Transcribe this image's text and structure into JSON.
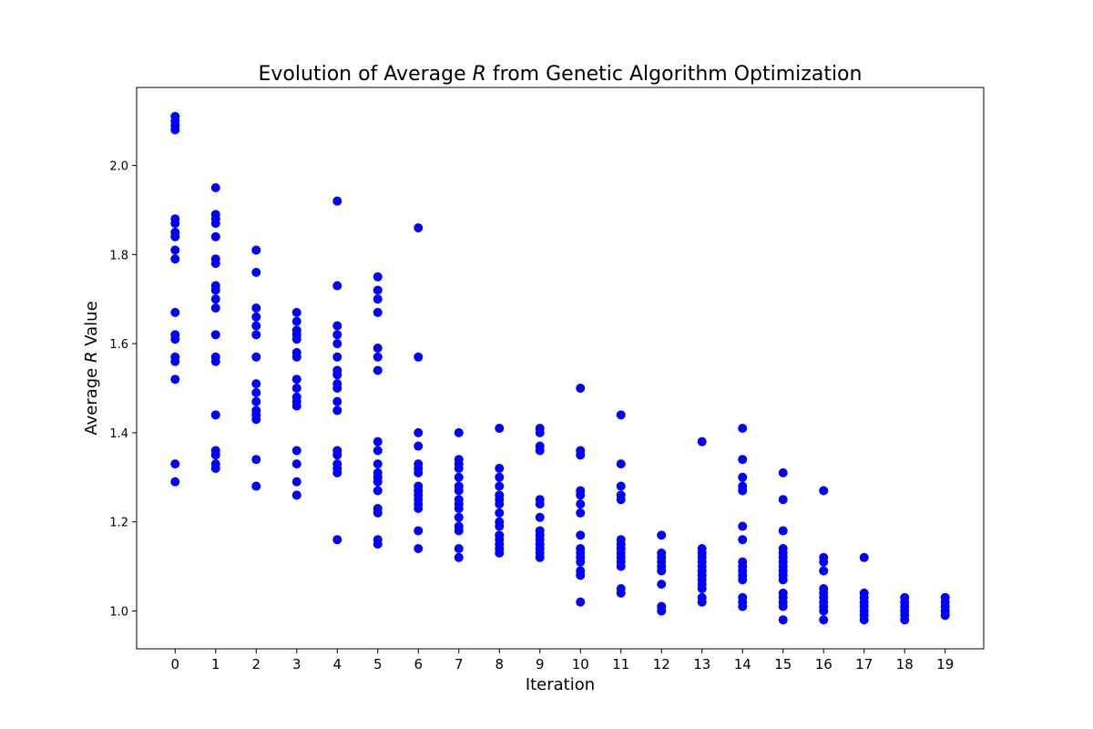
{
  "chart_data": {
    "type": "scatter",
    "title_prefix": "Evolution of Average ",
    "title_italic": "R",
    "title_suffix": " from Genetic Algorithm Optimization",
    "xlabel": "Iteration",
    "ylabel_prefix": "Average ",
    "ylabel_italic": "R",
    "ylabel_suffix": " Value",
    "xlim": [
      -0.95,
      19.95
    ],
    "ylim": [
      0.915,
      2.175
    ],
    "xticks": [
      "0",
      "1",
      "2",
      "3",
      "4",
      "5",
      "6",
      "7",
      "8",
      "9",
      "10",
      "11",
      "12",
      "13",
      "14",
      "15",
      "16",
      "17",
      "18",
      "19"
    ],
    "yticks": [
      "1.0",
      "1.2",
      "1.4",
      "1.6",
      "1.8",
      "2.0"
    ],
    "grid": false,
    "legend": "none",
    "marker_color": "#0000ff",
    "series": [
      {
        "points": [
          [
            0,
            2.11
          ],
          [
            0,
            2.1
          ],
          [
            0,
            2.09
          ],
          [
            0,
            2.08
          ],
          [
            0,
            1.88
          ],
          [
            0,
            1.87
          ],
          [
            0,
            1.85
          ],
          [
            0,
            1.84
          ],
          [
            0,
            1.81
          ],
          [
            0,
            1.79
          ],
          [
            0,
            1.67
          ],
          [
            0,
            1.62
          ],
          [
            0,
            1.61
          ],
          [
            0,
            1.57
          ],
          [
            0,
            1.56
          ],
          [
            0,
            1.52
          ],
          [
            0,
            1.33
          ],
          [
            0,
            1.29
          ],
          [
            1,
            1.95
          ],
          [
            1,
            1.89
          ],
          [
            1,
            1.88
          ],
          [
            1,
            1.87
          ],
          [
            1,
            1.84
          ],
          [
            1,
            1.79
          ],
          [
            1,
            1.78
          ],
          [
            1,
            1.73
          ],
          [
            1,
            1.72
          ],
          [
            1,
            1.7
          ],
          [
            1,
            1.68
          ],
          [
            1,
            1.62
          ],
          [
            1,
            1.57
          ],
          [
            1,
            1.56
          ],
          [
            1,
            1.44
          ],
          [
            1,
            1.36
          ],
          [
            1,
            1.35
          ],
          [
            1,
            1.33
          ],
          [
            1,
            1.32
          ],
          [
            2,
            1.81
          ],
          [
            2,
            1.76
          ],
          [
            2,
            1.68
          ],
          [
            2,
            1.66
          ],
          [
            2,
            1.64
          ],
          [
            2,
            1.62
          ],
          [
            2,
            1.57
          ],
          [
            2,
            1.51
          ],
          [
            2,
            1.49
          ],
          [
            2,
            1.47
          ],
          [
            2,
            1.45
          ],
          [
            2,
            1.44
          ],
          [
            2,
            1.43
          ],
          [
            2,
            1.34
          ],
          [
            2,
            1.28
          ],
          [
            3,
            1.67
          ],
          [
            3,
            1.65
          ],
          [
            3,
            1.63
          ],
          [
            3,
            1.62
          ],
          [
            3,
            1.61
          ],
          [
            3,
            1.58
          ],
          [
            3,
            1.57
          ],
          [
            3,
            1.52
          ],
          [
            3,
            1.5
          ],
          [
            3,
            1.48
          ],
          [
            3,
            1.47
          ],
          [
            3,
            1.46
          ],
          [
            3,
            1.36
          ],
          [
            3,
            1.33
          ],
          [
            3,
            1.29
          ],
          [
            3,
            1.26
          ],
          [
            4,
            1.92
          ],
          [
            4,
            1.73
          ],
          [
            4,
            1.64
          ],
          [
            4,
            1.62
          ],
          [
            4,
            1.6
          ],
          [
            4,
            1.57
          ],
          [
            4,
            1.54
          ],
          [
            4,
            1.53
          ],
          [
            4,
            1.51
          ],
          [
            4,
            1.5
          ],
          [
            4,
            1.47
          ],
          [
            4,
            1.45
          ],
          [
            4,
            1.36
          ],
          [
            4,
            1.35
          ],
          [
            4,
            1.33
          ],
          [
            4,
            1.32
          ],
          [
            4,
            1.31
          ],
          [
            4,
            1.16
          ],
          [
            5,
            1.75
          ],
          [
            5,
            1.72
          ],
          [
            5,
            1.7
          ],
          [
            5,
            1.67
          ],
          [
            5,
            1.59
          ],
          [
            5,
            1.57
          ],
          [
            5,
            1.54
          ],
          [
            5,
            1.38
          ],
          [
            5,
            1.36
          ],
          [
            5,
            1.33
          ],
          [
            5,
            1.31
          ],
          [
            5,
            1.3
          ],
          [
            5,
            1.29
          ],
          [
            5,
            1.27
          ],
          [
            5,
            1.23
          ],
          [
            5,
            1.22
          ],
          [
            5,
            1.16
          ],
          [
            5,
            1.15
          ],
          [
            6,
            1.86
          ],
          [
            6,
            1.57
          ],
          [
            6,
            1.4
          ],
          [
            6,
            1.37
          ],
          [
            6,
            1.33
          ],
          [
            6,
            1.32
          ],
          [
            6,
            1.31
          ],
          [
            6,
            1.28
          ],
          [
            6,
            1.27
          ],
          [
            6,
            1.26
          ],
          [
            6,
            1.25
          ],
          [
            6,
            1.24
          ],
          [
            6,
            1.23
          ],
          [
            6,
            1.18
          ],
          [
            6,
            1.14
          ],
          [
            7,
            1.4
          ],
          [
            7,
            1.34
          ],
          [
            7,
            1.33
          ],
          [
            7,
            1.32
          ],
          [
            7,
            1.3
          ],
          [
            7,
            1.28
          ],
          [
            7,
            1.27
          ],
          [
            7,
            1.25
          ],
          [
            7,
            1.24
          ],
          [
            7,
            1.23
          ],
          [
            7,
            1.21
          ],
          [
            7,
            1.19
          ],
          [
            7,
            1.18
          ],
          [
            7,
            1.14
          ],
          [
            7,
            1.12
          ],
          [
            8,
            1.41
          ],
          [
            8,
            1.32
          ],
          [
            8,
            1.3
          ],
          [
            8,
            1.28
          ],
          [
            8,
            1.26
          ],
          [
            8,
            1.25
          ],
          [
            8,
            1.24
          ],
          [
            8,
            1.22
          ],
          [
            8,
            1.2
          ],
          [
            8,
            1.19
          ],
          [
            8,
            1.17
          ],
          [
            8,
            1.16
          ],
          [
            8,
            1.15
          ],
          [
            8,
            1.14
          ],
          [
            8,
            1.13
          ],
          [
            9,
            1.41
          ],
          [
            9,
            1.4
          ],
          [
            9,
            1.37
          ],
          [
            9,
            1.36
          ],
          [
            9,
            1.25
          ],
          [
            9,
            1.24
          ],
          [
            9,
            1.21
          ],
          [
            9,
            1.18
          ],
          [
            9,
            1.17
          ],
          [
            9,
            1.16
          ],
          [
            9,
            1.15
          ],
          [
            9,
            1.14
          ],
          [
            9,
            1.13
          ],
          [
            9,
            1.12
          ],
          [
            10,
            1.5
          ],
          [
            10,
            1.36
          ],
          [
            10,
            1.35
          ],
          [
            10,
            1.27
          ],
          [
            10,
            1.26
          ],
          [
            10,
            1.24
          ],
          [
            10,
            1.22
          ],
          [
            10,
            1.17
          ],
          [
            10,
            1.14
          ],
          [
            10,
            1.13
          ],
          [
            10,
            1.12
          ],
          [
            10,
            1.11
          ],
          [
            10,
            1.09
          ],
          [
            10,
            1.08
          ],
          [
            10,
            1.02
          ],
          [
            11,
            1.44
          ],
          [
            11,
            1.33
          ],
          [
            11,
            1.28
          ],
          [
            11,
            1.26
          ],
          [
            11,
            1.25
          ],
          [
            11,
            1.16
          ],
          [
            11,
            1.15
          ],
          [
            11,
            1.14
          ],
          [
            11,
            1.13
          ],
          [
            11,
            1.12
          ],
          [
            11,
            1.11
          ],
          [
            11,
            1.1
          ],
          [
            11,
            1.05
          ],
          [
            11,
            1.04
          ],
          [
            12,
            1.17
          ],
          [
            12,
            1.13
          ],
          [
            12,
            1.12
          ],
          [
            12,
            1.11
          ],
          [
            12,
            1.1
          ],
          [
            12,
            1.09
          ],
          [
            12,
            1.06
          ],
          [
            12,
            1.01
          ],
          [
            12,
            1.0
          ],
          [
            13,
            1.38
          ],
          [
            13,
            1.14
          ],
          [
            13,
            1.13
          ],
          [
            13,
            1.12
          ],
          [
            13,
            1.11
          ],
          [
            13,
            1.1
          ],
          [
            13,
            1.09
          ],
          [
            13,
            1.08
          ],
          [
            13,
            1.07
          ],
          [
            13,
            1.06
          ],
          [
            13,
            1.05
          ],
          [
            13,
            1.03
          ],
          [
            13,
            1.02
          ],
          [
            14,
            1.41
          ],
          [
            14,
            1.34
          ],
          [
            14,
            1.3
          ],
          [
            14,
            1.28
          ],
          [
            14,
            1.27
          ],
          [
            14,
            1.19
          ],
          [
            14,
            1.16
          ],
          [
            14,
            1.11
          ],
          [
            14,
            1.1
          ],
          [
            14,
            1.09
          ],
          [
            14,
            1.08
          ],
          [
            14,
            1.07
          ],
          [
            14,
            1.03
          ],
          [
            14,
            1.02
          ],
          [
            14,
            1.01
          ],
          [
            15,
            1.31
          ],
          [
            15,
            1.25
          ],
          [
            15,
            1.18
          ],
          [
            15,
            1.14
          ],
          [
            15,
            1.13
          ],
          [
            15,
            1.12
          ],
          [
            15,
            1.11
          ],
          [
            15,
            1.1
          ],
          [
            15,
            1.09
          ],
          [
            15,
            1.08
          ],
          [
            15,
            1.07
          ],
          [
            15,
            1.04
          ],
          [
            15,
            1.03
          ],
          [
            15,
            1.02
          ],
          [
            15,
            1.01
          ],
          [
            15,
            0.98
          ],
          [
            16,
            1.27
          ],
          [
            16,
            1.12
          ],
          [
            16,
            1.11
          ],
          [
            16,
            1.09
          ],
          [
            16,
            1.05
          ],
          [
            16,
            1.04
          ],
          [
            16,
            1.03
          ],
          [
            16,
            1.02
          ],
          [
            16,
            1.01
          ],
          [
            16,
            1.0
          ],
          [
            16,
            0.98
          ],
          [
            17,
            1.12
          ],
          [
            17,
            1.04
          ],
          [
            17,
            1.03
          ],
          [
            17,
            1.02
          ],
          [
            17,
            1.01
          ],
          [
            17,
            1.0
          ],
          [
            17,
            0.99
          ],
          [
            17,
            0.98
          ],
          [
            18,
            1.03
          ],
          [
            18,
            1.02
          ],
          [
            18,
            1.01
          ],
          [
            18,
            1.0
          ],
          [
            18,
            0.99
          ],
          [
            18,
            0.98
          ],
          [
            19,
            1.03
          ],
          [
            19,
            1.02
          ],
          [
            19,
            1.01
          ],
          [
            19,
            1.0
          ],
          [
            19,
            0.99
          ]
        ]
      }
    ]
  }
}
